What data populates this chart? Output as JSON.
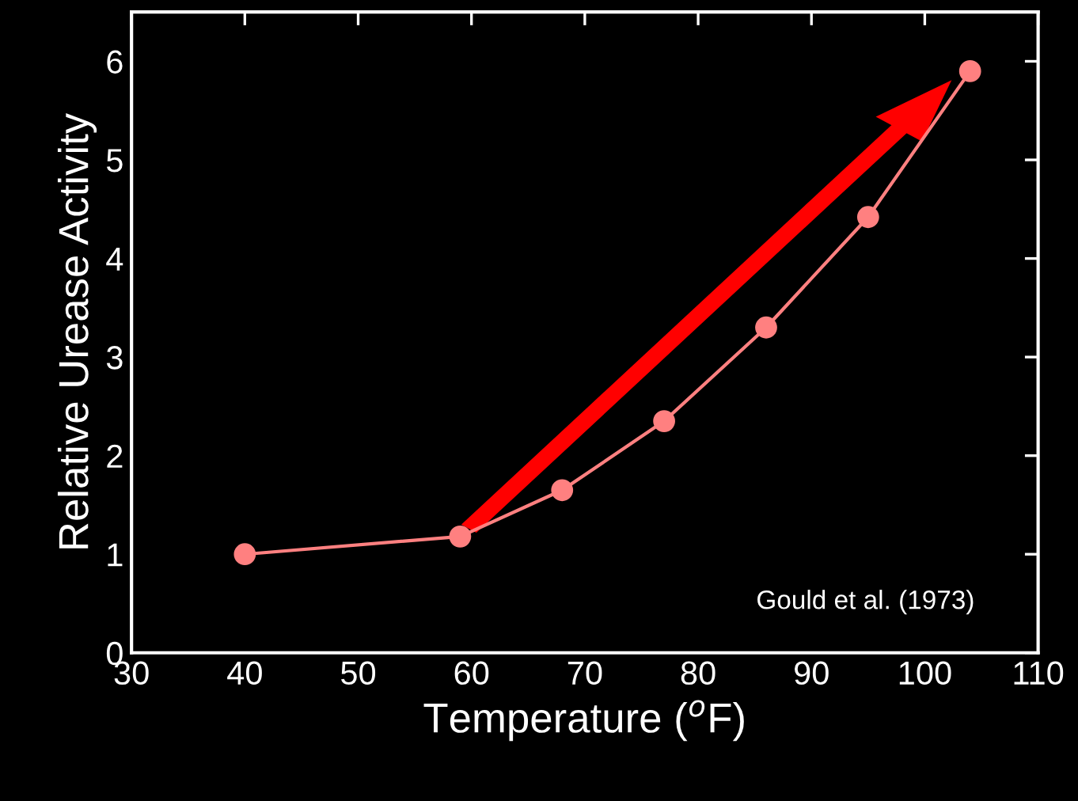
{
  "chart_data": {
    "type": "line",
    "xlabel": "Temperature ($^{o}$F)",
    "ylabel": "Relative Urease Activity",
    "x": [
      40,
      59,
      68,
      77,
      86,
      95,
      104
    ],
    "series": [
      {
        "color": "#ff8080",
        "values": [
          1.0,
          1.18,
          1.65,
          2.35,
          3.3,
          4.42,
          5.9
        ]
      }
    ],
    "marker": "circle",
    "line_style": "solid",
    "xlim": [
      30,
      110
    ],
    "xticks": [
      30,
      40,
      50,
      60,
      70,
      80,
      90,
      100,
      110
    ],
    "ylim": [
      0,
      6.5
    ],
    "yticks": [
      0,
      1,
      2,
      3,
      4,
      5,
      6
    ],
    "annotations": [
      "Gould et al. (1973)"
    ],
    "grid": false,
    "legend": false
  }
}
